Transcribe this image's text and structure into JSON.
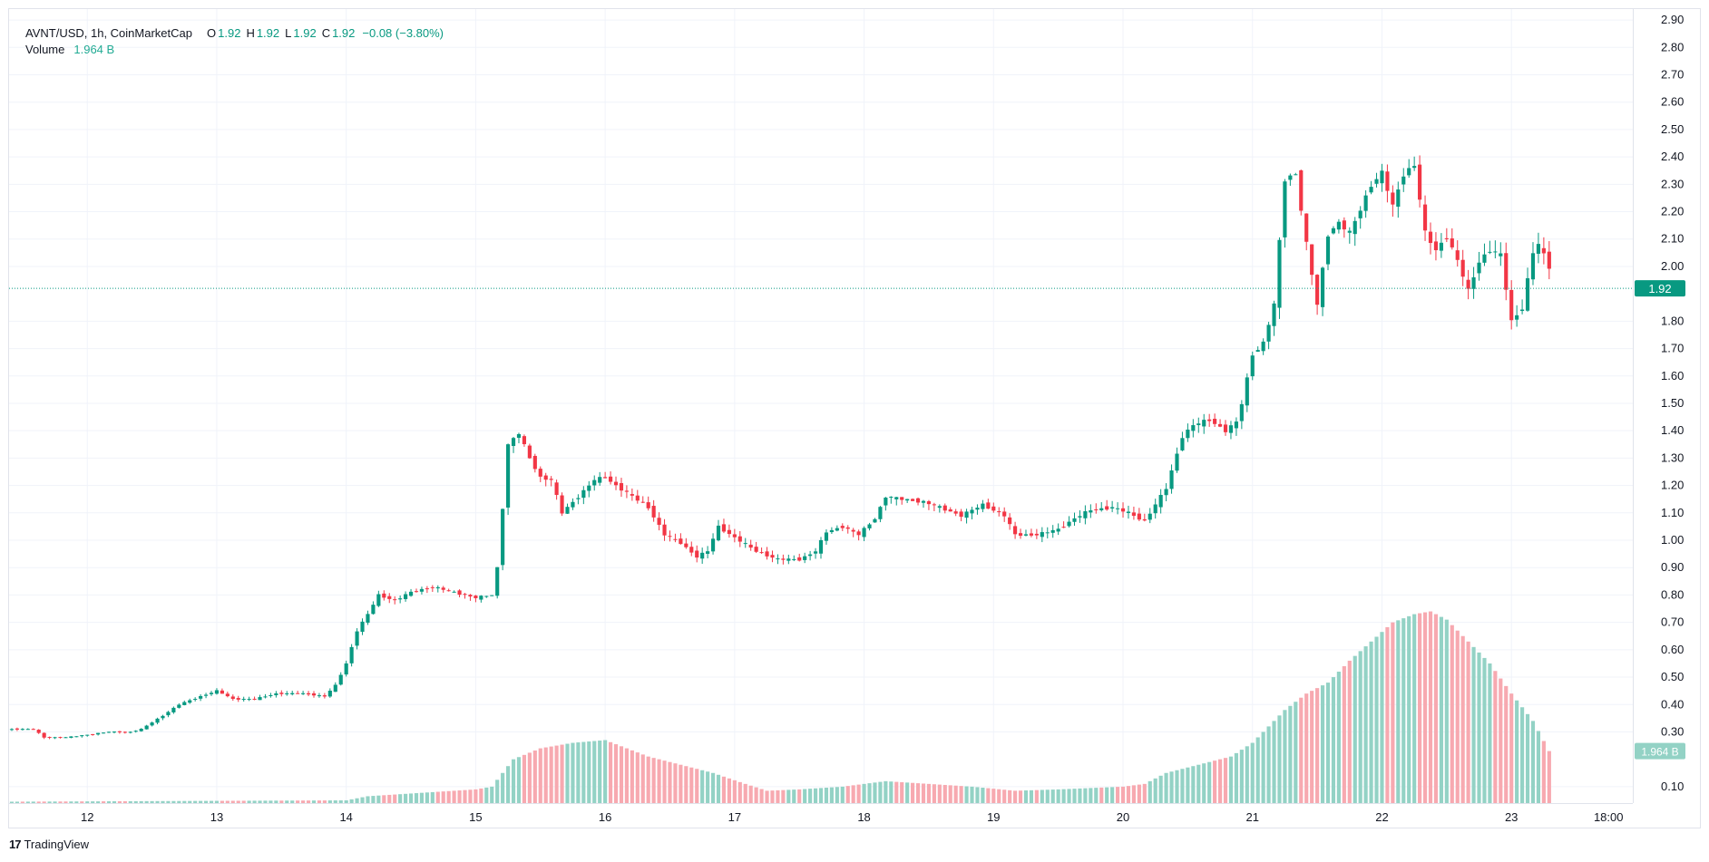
{
  "legend": {
    "symbol": "AVNT/USD, 1h, CoinMarketCap",
    "o_label": "O",
    "o_value": "1.92",
    "h_label": "H",
    "h_value": "1.92",
    "l_label": "L",
    "l_value": "1.92",
    "c_label": "C",
    "c_value": "1.92",
    "change": "−0.08 (−3.80%)",
    "volume_label": "Volume",
    "volume_value": "1.964 B"
  },
  "footer": {
    "brand": "TradingView",
    "logo_glyph": "17"
  },
  "colors": {
    "up": "#089981",
    "down": "#f23645",
    "vol_up": "#93d2c5",
    "vol_down": "#f7a9b0",
    "grid": "#f0f3fa",
    "price_line": "#089981"
  },
  "chart_data": {
    "type": "candlestick",
    "title": "AVNT/USD, 1h, CoinMarketCap",
    "y_axis": {
      "ticks": [
        "2.90",
        "2.80",
        "2.70",
        "2.60",
        "2.50",
        "2.40",
        "2.30",
        "2.20",
        "2.10",
        "2.00",
        "1.80",
        "1.70",
        "1.60",
        "1.50",
        "1.40",
        "1.30",
        "1.20",
        "1.10",
        "1.00",
        "0.90",
        "0.80",
        "0.70",
        "0.60",
        "0.50",
        "0.40",
        "0.30",
        "0.10"
      ],
      "range": [
        0.04,
        2.94
      ]
    },
    "x_axis": {
      "ticks": [
        "12",
        "13",
        "14",
        "15",
        "16",
        "17",
        "18",
        "19",
        "20",
        "21",
        "22",
        "23",
        "18:00"
      ],
      "tick_hours": [
        0,
        24,
        48,
        72,
        96,
        120,
        144,
        168,
        192,
        216,
        240,
        264,
        282
      ],
      "start_hour": -14.5,
      "end_hour": 286.5
    },
    "last_price": {
      "value": 1.92,
      "label": "1.92"
    },
    "last_volume": {
      "value": 0.23,
      "label": "1.964 B"
    },
    "price_anchors": [
      [
        -15,
        0.31
      ],
      [
        -10,
        0.31
      ],
      [
        -8,
        0.28
      ],
      [
        -4,
        0.28
      ],
      [
        0,
        0.29
      ],
      [
        4,
        0.3
      ],
      [
        8,
        0.3
      ],
      [
        10,
        0.31
      ],
      [
        14,
        0.36
      ],
      [
        17,
        0.4
      ],
      [
        21,
        0.43
      ],
      [
        24,
        0.45
      ],
      [
        27,
        0.42
      ],
      [
        31,
        0.42
      ],
      [
        35,
        0.44
      ],
      [
        40,
        0.44
      ],
      [
        44,
        0.43
      ],
      [
        46,
        0.47
      ],
      [
        48,
        0.55
      ],
      [
        50,
        0.67
      ],
      [
        52,
        0.73
      ],
      [
        54,
        0.8
      ],
      [
        57,
        0.78
      ],
      [
        60,
        0.81
      ],
      [
        64,
        0.83
      ],
      [
        68,
        0.81
      ],
      [
        72,
        0.79
      ],
      [
        75,
        0.8
      ],
      [
        76,
        0.9
      ],
      [
        77,
        1.12
      ],
      [
        78,
        1.35
      ],
      [
        80,
        1.39
      ],
      [
        82,
        1.3
      ],
      [
        84,
        1.23
      ],
      [
        86,
        1.22
      ],
      [
        88,
        1.1
      ],
      [
        91,
        1.16
      ],
      [
        94,
        1.22
      ],
      [
        96,
        1.23
      ],
      [
        98,
        1.2
      ],
      [
        101,
        1.16
      ],
      [
        104,
        1.12
      ],
      [
        107,
        1.02
      ],
      [
        110,
        0.99
      ],
      [
        113,
        0.94
      ],
      [
        115,
        0.96
      ],
      [
        117,
        1.05
      ],
      [
        120,
        1.01
      ],
      [
        124,
        0.96
      ],
      [
        128,
        0.93
      ],
      [
        132,
        0.93
      ],
      [
        135,
        0.96
      ],
      [
        137,
        1.03
      ],
      [
        140,
        1.05
      ],
      [
        143,
        1.02
      ],
      [
        146,
        1.08
      ],
      [
        148,
        1.16
      ],
      [
        151,
        1.15
      ],
      [
        155,
        1.14
      ],
      [
        158,
        1.12
      ],
      [
        162,
        1.09
      ],
      [
        166,
        1.13
      ],
      [
        170,
        1.09
      ],
      [
        172,
        1.02
      ],
      [
        176,
        1.02
      ],
      [
        180,
        1.04
      ],
      [
        183,
        1.08
      ],
      [
        186,
        1.11
      ],
      [
        190,
        1.12
      ],
      [
        193,
        1.1
      ],
      [
        196,
        1.07
      ],
      [
        198,
        1.13
      ],
      [
        200,
        1.19
      ],
      [
        203,
        1.38
      ],
      [
        205,
        1.42
      ],
      [
        208,
        1.44
      ],
      [
        211,
        1.4
      ],
      [
        213,
        1.43
      ],
      [
        214,
        1.5
      ],
      [
        216,
        1.68
      ],
      [
        218,
        1.72
      ],
      [
        220,
        1.86
      ],
      [
        222,
        2.32
      ],
      [
        224,
        2.34
      ],
      [
        226,
        2.08
      ],
      [
        228,
        1.86
      ],
      [
        230,
        2.12
      ],
      [
        232,
        2.16
      ],
      [
        234,
        2.12
      ],
      [
        236,
        2.21
      ],
      [
        238,
        2.3
      ],
      [
        240,
        2.34
      ],
      [
        242,
        2.22
      ],
      [
        244,
        2.34
      ],
      [
        246,
        2.37
      ],
      [
        248,
        2.12
      ],
      [
        250,
        2.06
      ],
      [
        252,
        2.11
      ],
      [
        254,
        2.02
      ],
      [
        256,
        1.91
      ],
      [
        258,
        2.02
      ],
      [
        260,
        2.06
      ],
      [
        262,
        2.04
      ],
      [
        264,
        1.8
      ],
      [
        266,
        1.85
      ],
      [
        268,
        2.05
      ],
      [
        269,
        2.08
      ],
      [
        271,
        2.0
      ]
    ],
    "volume_anchors": [
      [
        -15,
        0.045
      ],
      [
        48,
        0.05
      ],
      [
        52,
        0.065
      ],
      [
        68,
        0.085
      ],
      [
        72,
        0.09
      ],
      [
        75,
        0.1
      ],
      [
        79,
        0.2
      ],
      [
        84,
        0.24
      ],
      [
        90,
        0.26
      ],
      [
        96,
        0.27
      ],
      [
        100,
        0.24
      ],
      [
        104,
        0.21
      ],
      [
        110,
        0.18
      ],
      [
        116,
        0.15
      ],
      [
        122,
        0.11
      ],
      [
        126,
        0.085
      ],
      [
        132,
        0.09
      ],
      [
        140,
        0.1
      ],
      [
        148,
        0.12
      ],
      [
        156,
        0.11
      ],
      [
        164,
        0.1
      ],
      [
        172,
        0.085
      ],
      [
        180,
        0.09
      ],
      [
        192,
        0.1
      ],
      [
        196,
        0.11
      ],
      [
        200,
        0.15
      ],
      [
        206,
        0.18
      ],
      [
        212,
        0.21
      ],
      [
        216,
        0.26
      ],
      [
        222,
        0.38
      ],
      [
        226,
        0.44
      ],
      [
        230,
        0.48
      ],
      [
        234,
        0.56
      ],
      [
        238,
        0.63
      ],
      [
        242,
        0.7
      ],
      [
        246,
        0.73
      ],
      [
        249,
        0.74
      ],
      [
        252,
        0.71
      ],
      [
        256,
        0.63
      ],
      [
        260,
        0.55
      ],
      [
        264,
        0.44
      ],
      [
        268,
        0.34
      ],
      [
        271,
        0.23
      ]
    ],
    "grid": true,
    "legend_position": "top-left"
  }
}
